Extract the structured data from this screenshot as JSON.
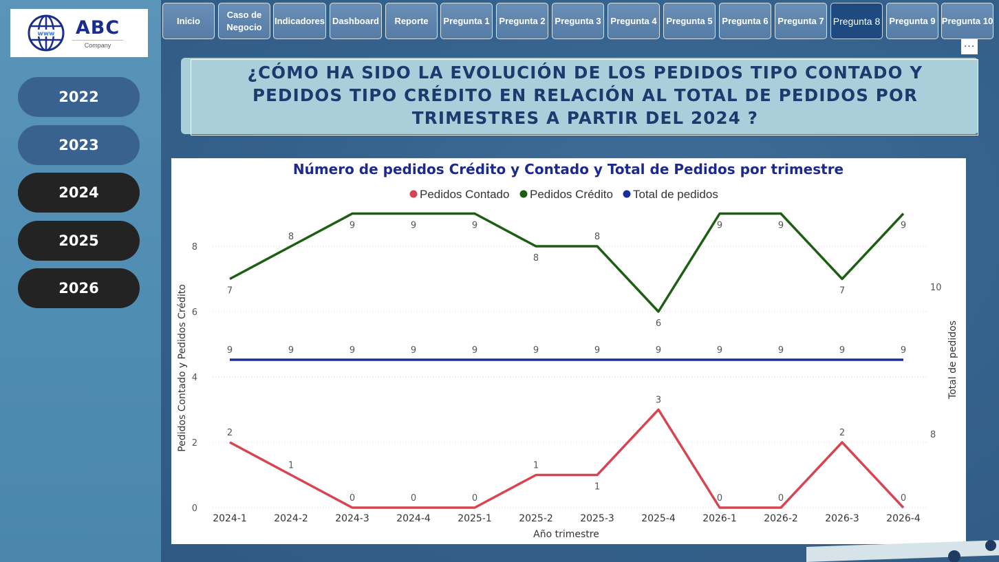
{
  "logo": {
    "brand": "ABC",
    "sub": "Company",
    "icon": "globe-www-icon"
  },
  "years": [
    {
      "label": "2022",
      "style": "light"
    },
    {
      "label": "2023",
      "style": "light"
    },
    {
      "label": "2024",
      "style": "dark"
    },
    {
      "label": "2025",
      "style": "dark"
    },
    {
      "label": "2026",
      "style": "dark"
    }
  ],
  "nav": [
    {
      "label": "Inicio",
      "active": false
    },
    {
      "label": "Caso de\nNegocio",
      "active": false
    },
    {
      "label": "Indicadores",
      "active": false
    },
    {
      "label": "Dashboard",
      "active": false
    },
    {
      "label": "Reporte",
      "active": false
    },
    {
      "label": "Pregunta 1",
      "active": false
    },
    {
      "label": "Pregunta 2",
      "active": false
    },
    {
      "label": "Pregunta 3",
      "active": false
    },
    {
      "label": "Pregunta 4",
      "active": false
    },
    {
      "label": "Pregunta 5",
      "active": false
    },
    {
      "label": "Pregunta 6",
      "active": false
    },
    {
      "label": "Pregunta 7",
      "active": false
    },
    {
      "label": "Pregunta 8",
      "active": true
    },
    {
      "label": "Pregunta 9",
      "active": false
    },
    {
      "label": "Pregunta 10",
      "active": false
    }
  ],
  "more_label": "···",
  "question": {
    "line1": "¿CÓMO HA SIDO LA EVOLUCIÓN DE LOS PEDIDOS TIPO CONTADO Y",
    "line2": "PEDIDOS TIPO CRÉDITO EN RELACIÓN AL TOTAL DE PEDIDOS POR",
    "line3": "TRIMESTRES A PARTIR DEL 2024 ?"
  },
  "colors": {
    "contado": "#d64550",
    "credito": "#1e5e14",
    "total": "#1a2e9c",
    "title": "#1c2a8a"
  },
  "chart_data": {
    "type": "line",
    "title": "Número de pedidos Crédito y Contado y Total de Pedidos por trimestre",
    "xlabel": "Año trimestre",
    "ylabel": "Pedidos Contado y Pedidos Crédito",
    "ylabel_right": "Total de pedidos",
    "categories": [
      "2024-1",
      "2024-2",
      "2024-3",
      "2024-4",
      "2025-1",
      "2025-2",
      "2025-3",
      "2025-4",
      "2026-1",
      "2026-2",
      "2026-3",
      "2026-4"
    ],
    "y_ticks": [
      "0",
      "2",
      "4",
      "6",
      "8"
    ],
    "y_right_ticks": [
      "8",
      "10"
    ],
    "ylim": [
      0,
      9.4
    ],
    "legend_position": "top-center",
    "grid": true,
    "series": [
      {
        "name": "Pedidos Contado",
        "key": "contado",
        "axis": "left",
        "values": [
          2,
          1,
          0,
          0,
          0,
          1,
          1,
          3,
          0,
          0,
          2,
          0
        ],
        "labels": [
          "2",
          "1",
          "0",
          "0",
          "0",
          "1",
          "1",
          "3",
          "0",
          "0",
          "2",
          "0"
        ]
      },
      {
        "name": "Pedidos Crédito",
        "key": "credito",
        "axis": "left",
        "values": [
          7,
          8,
          9,
          9,
          9,
          8,
          8,
          6,
          9,
          9,
          7,
          9
        ],
        "labels": [
          "7",
          "8",
          "9",
          "9",
          "9",
          "8",
          "8",
          "6",
          "9",
          "9",
          "7",
          "9"
        ]
      },
      {
        "name": "Total de pedidos",
        "key": "total",
        "axis": "right",
        "values": [
          9,
          9,
          9,
          9,
          9,
          9,
          9,
          9,
          9,
          9,
          9,
          9
        ],
        "labels": [
          "9",
          "9",
          "9",
          "9",
          "9",
          "9",
          "9",
          "9",
          "9",
          "9",
          "9",
          "9"
        ]
      }
    ]
  }
}
